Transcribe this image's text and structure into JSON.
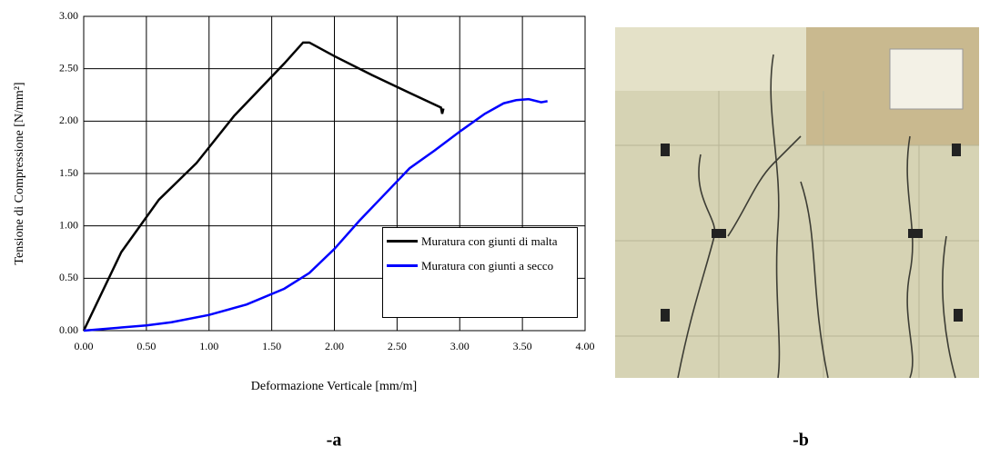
{
  "chart_data": {
    "type": "line",
    "xlabel": "Deformazione Verticale [mm/m]",
    "ylabel": "Tensione di Compressione [N/mm²]",
    "xlim": [
      0,
      4
    ],
    "ylim": [
      0,
      3
    ],
    "grid": true,
    "legend": "lower right",
    "xticks": [
      {
        "value": 0,
        "label": "0.00"
      },
      {
        "value": 0.5,
        "label": "0.50"
      },
      {
        "value": 1,
        "label": "1.00"
      },
      {
        "value": 1.5,
        "label": "1.50"
      },
      {
        "value": 2,
        "label": "2.00"
      },
      {
        "value": 2.5,
        "label": "2.50"
      },
      {
        "value": 3,
        "label": "3.00"
      },
      {
        "value": 3.5,
        "label": "3.50"
      },
      {
        "value": 4,
        "label": "4.00"
      }
    ],
    "yticks": [
      {
        "value": 0,
        "label": "0.00"
      },
      {
        "value": 0.5,
        "label": "0.50"
      },
      {
        "value": 1,
        "label": "1.00"
      },
      {
        "value": 1.5,
        "label": "1.50"
      },
      {
        "value": 2,
        "label": "2.00"
      },
      {
        "value": 2.5,
        "label": "2.50"
      },
      {
        "value": 3,
        "label": "3.00"
      }
    ],
    "series": [
      {
        "name": "Muratura con giunti di malta",
        "color": "#000000",
        "x": [
          0,
          0.3,
          0.6,
          0.9,
          1.2,
          1.4,
          1.6,
          1.75,
          1.8,
          2.0,
          2.3,
          2.6,
          2.85,
          2.86,
          2.87
        ],
        "values": [
          0,
          0.75,
          1.25,
          1.6,
          2.05,
          2.3,
          2.55,
          2.75,
          2.75,
          2.62,
          2.44,
          2.27,
          2.13,
          2.07,
          2.12
        ]
      },
      {
        "name": "Muratura con giunti a secco",
        "color": "#0000ff",
        "x": [
          0,
          0.3,
          0.5,
          0.7,
          1.0,
          1.3,
          1.6,
          1.8,
          2.0,
          2.2,
          2.4,
          2.6,
          2.8,
          3.0,
          3.2,
          3.35,
          3.45,
          3.55,
          3.65,
          3.7
        ],
        "values": [
          0,
          0.03,
          0.05,
          0.08,
          0.15,
          0.25,
          0.4,
          0.55,
          0.78,
          1.05,
          1.3,
          1.55,
          1.72,
          1.9,
          2.07,
          2.17,
          2.2,
          2.21,
          2.18,
          2.19
        ]
      }
    ]
  },
  "captions": [
    "-a",
    "-b"
  ]
}
